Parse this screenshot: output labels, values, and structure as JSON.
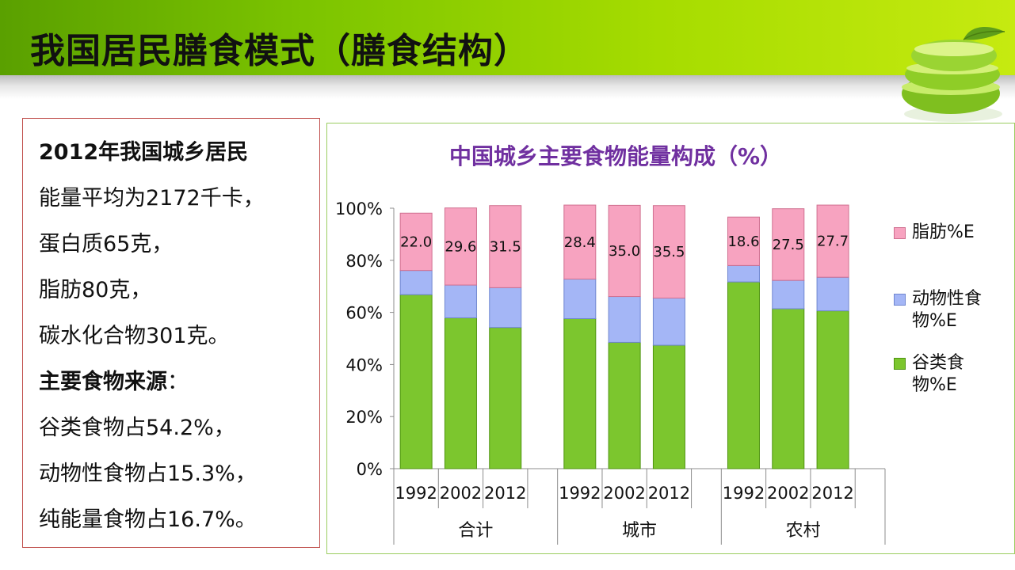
{
  "slide": {
    "title": "我国居民膳食模式（膳食结构）"
  },
  "textbox": {
    "lines": [
      {
        "text": "2012年我国城乡居民",
        "bold": true
      },
      {
        "text": "能量平均为2172千卡，",
        "bold": false
      },
      {
        "text": "蛋白质65克，",
        "bold": false
      },
      {
        "text": "脂肪80克，",
        "bold": false
      },
      {
        "text": "碳水化合物301克。",
        "bold": false
      },
      {
        "text": "主要食物来源",
        "bold": true,
        "suffix": "："
      },
      {
        "text": "谷类食物占54.2%，",
        "bold": false
      },
      {
        "text": "动物性食物占15.3%，",
        "bold": false
      },
      {
        "text": "纯能量食物占16.7%。",
        "bold": false
      }
    ]
  },
  "chart_data": {
    "type": "bar",
    "stacked": true,
    "title": "中国城乡主要食物能量构成（%）",
    "groups": [
      "合计",
      "城市",
      "农村"
    ],
    "years": [
      "1992",
      "2002",
      "2012"
    ],
    "yticks": [
      "0%",
      "20%",
      "40%",
      "60%",
      "80%",
      "100%"
    ],
    "ylim": [
      0,
      100
    ],
    "legend_position": "right",
    "series": [
      {
        "name": "谷类食物%E",
        "color": "#7cc62e",
        "values": [
          66.8,
          57.9,
          54.2,
          57.6,
          48.5,
          47.4,
          71.7,
          61.4,
          60.6
        ]
      },
      {
        "name": "动物性食物%E",
        "color": "#a4b6f6",
        "values": [
          9.3,
          12.6,
          15.3,
          15.2,
          17.6,
          18.1,
          6.3,
          10.9,
          12.9
        ]
      },
      {
        "name": "脂肪%E",
        "color": "#f7a3c0",
        "values": [
          22.0,
          29.6,
          31.5,
          28.4,
          35.0,
          35.5,
          18.6,
          27.5,
          27.7
        ]
      }
    ],
    "data_labels": [
      "22.0",
      "29.6",
      "31.5",
      "28.4",
      "35.0",
      "35.5",
      "18.6",
      "27.5",
      "27.7"
    ]
  }
}
